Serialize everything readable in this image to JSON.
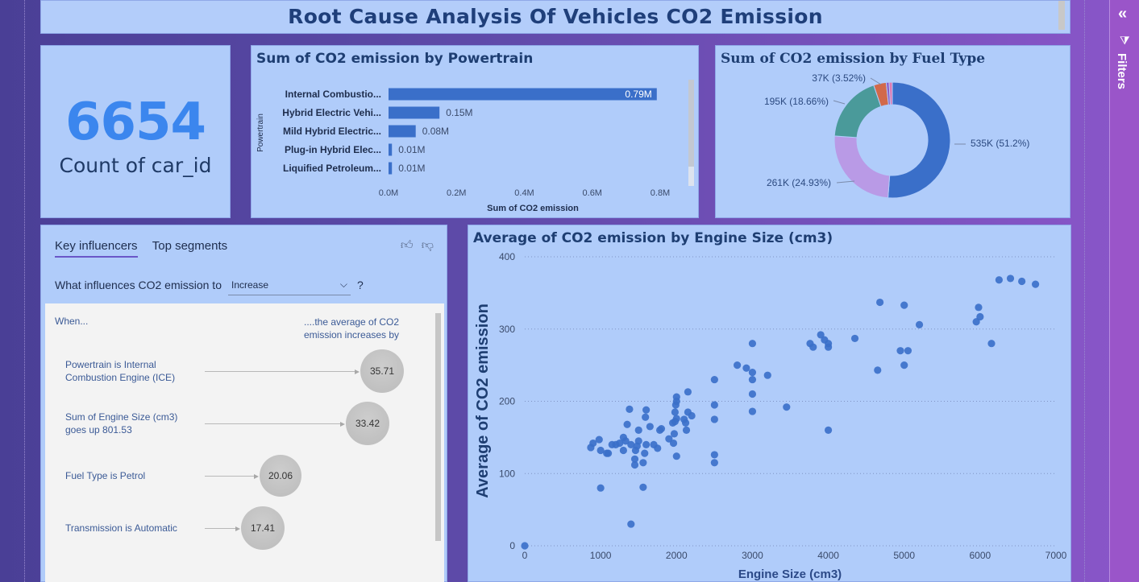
{
  "header": {
    "title": "Root Cause Analysis Of Vehicles CO2 Emission"
  },
  "kpi": {
    "value": "6654",
    "label": "Count of car_id"
  },
  "powertrain_chart": {
    "title": "Sum of CO2 emission by Powertrain",
    "accent": "#3a6fc9",
    "chart_data": {
      "type": "bar",
      "orientation": "horizontal",
      "title": "Sum of CO2 emission by Powertrain",
      "xlabel": "Sum of CO2 emission",
      "ylabel": "Powertrain",
      "categories": [
        "Internal Combustio...",
        "Hybrid Electric Vehi...",
        "Mild Hybrid Electric...",
        "Plug-in Hybrid Elec...",
        "Liquified Petroleum..."
      ],
      "values": [
        0.79,
        0.15,
        0.08,
        0.01,
        0.01
      ],
      "data_labels": [
        "0.79M",
        "0.15M",
        "0.08M",
        "0.01M",
        "0.01M"
      ],
      "xticks": [
        "0.0M",
        "0.2M",
        "0.4M",
        "0.6M",
        "0.8M"
      ],
      "xlim": [
        0,
        0.8
      ]
    }
  },
  "fuel_chart": {
    "title": "Sum of CO2 emission by Fuel Type",
    "chart_data": {
      "type": "pie",
      "donut": true,
      "title": "Sum of CO2 emission by Fuel Type",
      "slices": [
        {
          "label": "535K (51.2%)",
          "value": 51.2,
          "color": "#3a6fc9"
        },
        {
          "label": "261K (24.93%)",
          "value": 24.93,
          "color": "#b99ae6"
        },
        {
          "label": "195K (18.66%)",
          "value": 18.66,
          "color": "#4a9a9a"
        },
        {
          "label": "37K (3.52%)",
          "value": 3.52,
          "color": "#d2694a"
        },
        {
          "label": "",
          "value": 0.8,
          "color": "#8a5cc9"
        },
        {
          "label": "",
          "value": 0.89,
          "color": "#e07ab2"
        }
      ]
    }
  },
  "influencers": {
    "tabs": [
      {
        "label": "Key influencers"
      },
      {
        "label": "Top segments"
      }
    ],
    "question_prefix": "What influences CO2 emission to",
    "select_value": "Increase",
    "question_suffix": "?",
    "head_left": "When...",
    "head_right_1": "....the average of CO2",
    "head_right_2": "emission increases by",
    "rows": [
      {
        "label_1": "Powertrain is Internal",
        "label_2": "Combustion Engine (ICE)",
        "value": "35.71"
      },
      {
        "label_1": "Sum of Engine Size (cm3)",
        "label_2": "goes up 801.53",
        "value": "33.42"
      },
      {
        "label_1": "Fuel Type is Petrol",
        "label_2": "",
        "value": "20.06"
      },
      {
        "label_1": "Transmission is Automatic",
        "label_2": "",
        "value": "17.41"
      }
    ]
  },
  "scatter_chart": {
    "title": "Average of CO2 emission by Engine Size (cm3)",
    "chart_data": {
      "type": "scatter",
      "title": "Average of CO2 emission by Engine Size (cm3)",
      "xlabel": "Engine Size (cm3)",
      "ylabel": "Average of CO2 emission",
      "xlim": [
        0,
        7000
      ],
      "ylim": [
        0,
        400
      ],
      "xticks": [
        0,
        1000,
        2000,
        3000,
        4000,
        5000,
        6000,
        7000
      ],
      "yticks": [
        0,
        100,
        200,
        300,
        400
      ],
      "color": "#3a6fc9",
      "grid": true,
      "points": [
        [
          0,
          0
        ],
        [
          870,
          136
        ],
        [
          900,
          142
        ],
        [
          980,
          147
        ],
        [
          1000,
          80
        ],
        [
          1000,
          132
        ],
        [
          1080,
          128
        ],
        [
          1100,
          128
        ],
        [
          1150,
          140
        ],
        [
          1200,
          140
        ],
        [
          1250,
          142
        ],
        [
          1300,
          132
        ],
        [
          1300,
          150
        ],
        [
          1330,
          145
        ],
        [
          1350,
          168
        ],
        [
          1380,
          189
        ],
        [
          1400,
          30
        ],
        [
          1400,
          140
        ],
        [
          1450,
          112
        ],
        [
          1450,
          120
        ],
        [
          1460,
          132
        ],
        [
          1480,
          138
        ],
        [
          1500,
          145
        ],
        [
          1500,
          160
        ],
        [
          1560,
          81
        ],
        [
          1560,
          115
        ],
        [
          1580,
          128
        ],
        [
          1600,
          140
        ],
        [
          1590,
          178
        ],
        [
          1600,
          188
        ],
        [
          1650,
          165
        ],
        [
          1700,
          140
        ],
        [
          1750,
          135
        ],
        [
          1780,
          160
        ],
        [
          1800,
          162
        ],
        [
          1900,
          148
        ],
        [
          1950,
          170
        ],
        [
          1960,
          142
        ],
        [
          1970,
          155
        ],
        [
          1980,
          172
        ],
        [
          1980,
          185
        ],
        [
          1990,
          195
        ],
        [
          2000,
          124
        ],
        [
          2000,
          176
        ],
        [
          2000,
          200
        ],
        [
          2000,
          206
        ],
        [
          2100,
          175
        ],
        [
          2120,
          170
        ],
        [
          2130,
          160
        ],
        [
          2150,
          185
        ],
        [
          2150,
          213
        ],
        [
          2200,
          180
        ],
        [
          2500,
          115
        ],
        [
          2500,
          126
        ],
        [
          2500,
          175
        ],
        [
          2500,
          195
        ],
        [
          2500,
          230
        ],
        [
          2800,
          250
        ],
        [
          2920,
          246
        ],
        [
          3000,
          186
        ],
        [
          3000,
          210
        ],
        [
          3000,
          230
        ],
        [
          3000,
          240
        ],
        [
          3000,
          280
        ],
        [
          3200,
          236
        ],
        [
          3450,
          192
        ],
        [
          3760,
          280
        ],
        [
          3800,
          275
        ],
        [
          3900,
          292
        ],
        [
          3950,
          285
        ],
        [
          4000,
          160
        ],
        [
          4000,
          275
        ],
        [
          4000,
          280
        ],
        [
          4350,
          287
        ],
        [
          4650,
          243
        ],
        [
          4680,
          337
        ],
        [
          4950,
          270
        ],
        [
          5000,
          250
        ],
        [
          5000,
          333
        ],
        [
          5050,
          270
        ],
        [
          5200,
          306
        ],
        [
          5950,
          310
        ],
        [
          5980,
          330
        ],
        [
          6000,
          317
        ],
        [
          6150,
          280
        ],
        [
          6250,
          368
        ],
        [
          6400,
          370
        ],
        [
          6550,
          366
        ],
        [
          6730,
          362
        ]
      ]
    }
  },
  "filters_pane": {
    "label": "Filters",
    "collapse_icon": "double-chevron-left-icon",
    "filter_icon": "funnel-icon"
  }
}
